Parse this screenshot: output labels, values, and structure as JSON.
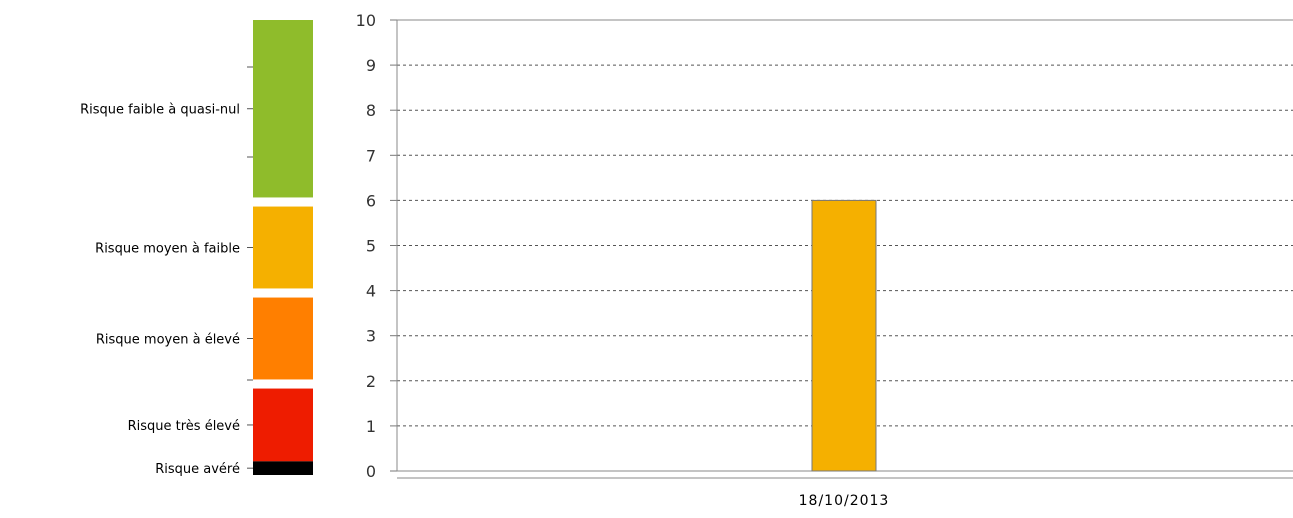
{
  "scale": {
    "levels": [
      {
        "label": "Risque faible à quasi-nul",
        "from": 6.1,
        "to": 10,
        "color": "#8fbc2b"
      },
      {
        "label": "Risque moyen à faible",
        "from": 4.1,
        "to": 5.9,
        "color": "#f5b000"
      },
      {
        "label": "Risque moyen à élevé",
        "from": 2.1,
        "to": 3.9,
        "color": "#ff7f00"
      },
      {
        "label": "Risque très élevé",
        "from": 0.3,
        "to": 1.9,
        "color": "#ee1c00"
      },
      {
        "label": "Risque avéré",
        "from": 0,
        "to": 0.3,
        "color": "#000000"
      }
    ]
  },
  "chart_data": {
    "type": "bar",
    "categories": [
      "18/10/2013"
    ],
    "values": [
      6
    ],
    "bar_color": "#f5b000",
    "title": "",
    "xlabel": "",
    "ylabel": "",
    "ylim": [
      0,
      10
    ],
    "yticks": [
      "0",
      "1",
      "2",
      "3",
      "4",
      "5",
      "6",
      "7",
      "8",
      "9",
      "10"
    ],
    "grid": true
  }
}
